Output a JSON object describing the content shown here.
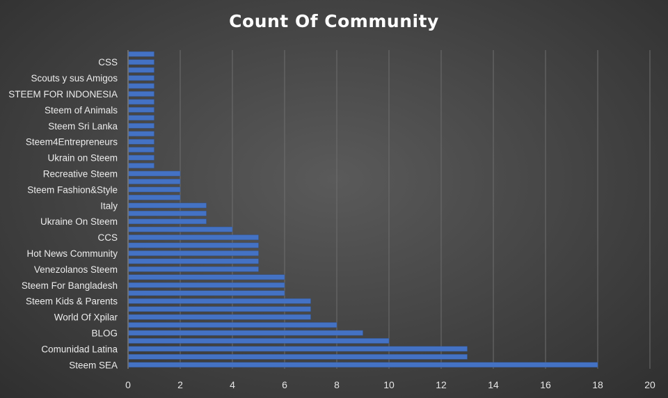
{
  "chart_data": {
    "type": "bar",
    "orientation": "horizontal",
    "title": "Count Of Community",
    "xlabel": "",
    "ylabel": "",
    "xlim": [
      0,
      20
    ],
    "x_ticks": [
      0,
      2,
      4,
      6,
      8,
      10,
      12,
      14,
      16,
      18,
      20
    ],
    "grid": "vertical",
    "legend": "none",
    "bar_color": "#4472c4",
    "categories": [
      "Steem SEA",
      "",
      "Comunidad Latina",
      "",
      "BLOG",
      "",
      "World Of Xpilar",
      "",
      "Steem Kids & Parents",
      "",
      "Steem For Bangladesh",
      "",
      "Venezolanos Steem",
      "",
      "Hot News Community",
      "",
      "CCS",
      "",
      "Ukraine On Steem",
      "",
      "Italy",
      "",
      "Steem Fashion&Style",
      "",
      "Recreative Steem",
      "",
      "Ukrain on Steem",
      "",
      "Steem4Entrepreneurs",
      "",
      "Steem Sri Lanka",
      "",
      "Steem of Animals",
      "",
      "STEEM FOR INDONESIA",
      "",
      "Scouts y sus Amigos",
      "",
      "CSS",
      ""
    ],
    "values": [
      18,
      13,
      13,
      10,
      9,
      8,
      7,
      7,
      7,
      6,
      6,
      6,
      5,
      5,
      5,
      5,
      5,
      4,
      3,
      3,
      3,
      2,
      2,
      2,
      2,
      1,
      1,
      1,
      1,
      1,
      1,
      1,
      1,
      1,
      1,
      1,
      1,
      1,
      1,
      1
    ]
  }
}
